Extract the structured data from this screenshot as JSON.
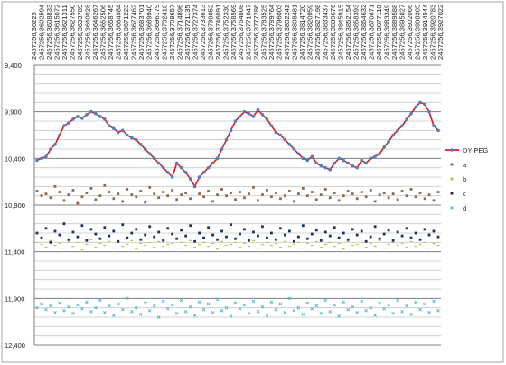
{
  "chart_data": {
    "type": "line",
    "title": "",
    "xlabel": "",
    "ylabel": "",
    "y_reversed": true,
    "ylim": [
      9.4,
      12.4
    ],
    "yticks": [
      "9,400",
      "9,900",
      "10,400",
      "10,900",
      "11,400",
      "11,900",
      "12,400"
    ],
    "grid": true,
    "legend_position": "right",
    "x_tick_labels": [
      "2457256,36225",
      "2457256,3602594",
      "2457256,3608833",
      "2457256,3615072",
      "2457256,3621311",
      "2457256,3627550",
      "2457256,3633789",
      "2457256,3640028",
      "2457256,3646267",
      "2457256,3652506",
      "2457256,3658745",
      "2457256,3664984",
      "2457256,3671223",
      "2457256,3677462",
      "2457256,3683701",
      "2457256,3689940",
      "2457256,3696179",
      "2457256,3702418",
      "2457256,3708657",
      "2457256,3714896",
      "2457256,3721135",
      "2457256,3727374",
      "2457256,3733613",
      "2457256,3739852",
      "2457256,3746091",
      "2457256,3752330",
      "2457256,3758569",
      "2457256,3764808",
      "2457256,3771047",
      "2457256,3777286",
      "2457256,3783525",
      "2457256,3789764",
      "2457256,3796003",
      "2457256,3802242",
      "2457256,3808481",
      "2457256,3814720",
      "2457256,3820959",
      "2457256,3827198",
      "2457256,3833437",
      "2457256,3839676",
      "2457256,3845915",
      "2457256,3852154",
      "2457256,3858393",
      "2457256,3864632",
      "2457256,3870871",
      "2457256,3877110",
      "2457256,3883349",
      "2457256,3889588",
      "2457256,3895827",
      "2457256,3902066",
      "2457256,3908305",
      "2457256,3914544",
      "2457256,3920783",
      "2457256,3927022"
    ],
    "series": [
      {
        "name": "DY PEG",
        "kind": "line",
        "color": "#e8161b",
        "marker_color": "#4f81bd",
        "values": [
          10.42,
          10.4,
          10.38,
          10.3,
          10.25,
          10.15,
          10.05,
          10.02,
          9.98,
          9.95,
          9.97,
          9.93,
          9.9,
          9.92,
          9.95,
          9.98,
          10.05,
          10.08,
          10.12,
          10.1,
          10.15,
          10.18,
          10.2,
          10.25,
          10.3,
          10.35,
          10.4,
          10.45,
          10.5,
          10.55,
          10.6,
          10.45,
          10.5,
          10.55,
          10.62,
          10.7,
          10.6,
          10.55,
          10.5,
          10.45,
          10.4,
          10.3,
          10.2,
          10.1,
          10.0,
          9.95,
          9.9,
          9.92,
          9.95,
          9.88,
          9.93,
          9.98,
          10.05,
          10.12,
          10.15,
          10.2,
          10.25,
          10.3,
          10.35,
          10.4,
          10.42,
          10.38,
          10.45,
          10.48,
          10.5,
          10.52,
          10.45,
          10.4,
          10.42,
          10.45,
          10.48,
          10.5,
          10.42,
          10.45,
          10.4,
          10.38,
          10.35,
          10.28,
          10.22,
          10.15,
          10.1,
          10.05,
          9.98,
          9.92,
          9.85,
          9.8,
          9.82,
          9.9,
          10.05,
          10.1
        ]
      },
      {
        "name": "a",
        "kind": "markers",
        "color": "#8b6a55",
        "values": [
          10.75,
          10.8,
          10.78,
          10.82,
          10.7,
          10.76,
          10.85,
          10.79,
          10.74,
          10.88,
          10.81,
          10.77,
          10.72,
          10.84,
          10.8,
          10.69,
          10.76,
          10.83,
          10.78,
          10.86,
          10.73,
          10.79,
          10.81,
          10.75,
          10.87,
          10.71,
          10.78,
          10.82,
          10.76,
          10.8,
          10.74,
          10.84,
          10.79,
          10.77,
          10.83,
          10.7,
          10.78,
          10.81,
          10.75,
          10.86,
          10.79,
          10.73,
          10.8,
          10.77,
          10.84,
          10.76,
          10.82,
          10.78,
          10.71,
          10.85,
          10.79,
          10.74,
          10.81,
          10.77,
          10.83,
          10.8,
          10.75,
          10.86,
          10.78,
          10.72,
          10.8,
          10.76,
          10.84,
          10.79,
          10.73,
          10.82,
          10.77,
          10.85,
          10.8,
          10.75,
          10.78,
          10.83,
          10.76,
          10.81,
          10.74,
          10.86,
          10.79,
          10.77,
          10.82,
          10.78,
          10.84,
          10.75,
          10.8,
          10.73,
          10.81,
          10.77,
          10.83,
          10.79,
          10.85,
          10.76
        ]
      },
      {
        "name": "b",
        "kind": "markers",
        "color": "#b5c94a",
        "values": [
          11.3,
          11.32,
          11.35,
          11.28,
          11.33,
          11.31,
          11.36,
          11.29,
          11.34,
          11.3,
          11.38,
          11.32,
          11.27,
          11.35,
          11.31,
          11.33,
          11.29,
          11.36,
          11.3,
          11.34,
          11.32,
          11.28,
          11.37,
          11.31,
          11.33,
          11.3,
          11.35,
          11.29,
          11.34,
          11.32,
          11.31,
          11.36,
          11.3,
          11.33,
          11.28,
          11.35,
          11.32,
          11.3,
          11.34,
          11.31,
          11.37,
          11.29,
          11.33,
          11.32,
          11.3,
          11.35,
          11.31,
          11.34,
          11.28,
          11.36,
          11.32,
          11.3,
          11.33,
          11.31,
          11.35,
          11.29,
          11.34,
          11.32,
          11.3,
          11.36,
          11.31,
          11.33,
          11.29,
          11.35,
          11.32,
          11.3,
          11.34,
          11.31,
          11.37,
          11.29,
          11.33,
          11.32,
          11.3,
          11.35,
          11.31,
          11.34,
          11.28,
          11.36,
          11.32,
          11.3,
          11.33,
          11.31,
          11.35,
          11.29,
          11.34,
          11.32,
          11.3,
          11.36,
          11.31,
          11.33
        ]
      },
      {
        "name": "c",
        "kind": "markers",
        "color": "#1f2f5e",
        "values": [
          11.2,
          11.25,
          11.15,
          11.3,
          11.18,
          11.22,
          11.1,
          11.27,
          11.19,
          11.24,
          11.12,
          11.28,
          11.16,
          11.21,
          11.26,
          11.14,
          11.23,
          11.18,
          11.29,
          11.11,
          11.25,
          11.2,
          11.16,
          11.27,
          11.22,
          11.13,
          11.24,
          11.19,
          11.28,
          11.15,
          11.21,
          11.26,
          11.17,
          11.23,
          11.12,
          11.29,
          11.2,
          11.25,
          11.14,
          11.22,
          11.27,
          11.18,
          11.24,
          11.11,
          11.26,
          11.21,
          11.16,
          11.28,
          11.19,
          11.23,
          11.13,
          11.25,
          11.2,
          11.27,
          11.15,
          11.22,
          11.18,
          11.29,
          11.24,
          11.12,
          11.26,
          11.21,
          11.17,
          11.28,
          11.19,
          11.23,
          11.14,
          11.25,
          11.2,
          11.27,
          11.16,
          11.22,
          11.18,
          11.29,
          11.24,
          11.13,
          11.26,
          11.21,
          11.17,
          11.28,
          11.19,
          11.23,
          11.15,
          11.25,
          11.2,
          11.27,
          11.16,
          11.22,
          11.18,
          11.24
        ]
      },
      {
        "name": "d",
        "kind": "markers",
        "color": "#4fb3c9",
        "values": [
          12.0,
          11.96,
          12.02,
          11.98,
          12.05,
          11.95,
          12.03,
          11.99,
          12.06,
          11.97,
          12.01,
          11.94,
          12.04,
          12.0,
          11.92,
          12.05,
          11.98,
          12.08,
          11.96,
          12.02,
          11.9,
          12.04,
          12.0,
          12.07,
          11.95,
          12.03,
          11.98,
          12.1,
          11.93,
          12.01,
          11.97,
          12.06,
          11.92,
          12.04,
          11.99,
          12.08,
          11.94,
          12.02,
          11.96,
          12.05,
          11.91,
          12.03,
          12.0,
          12.09,
          11.95,
          12.01,
          11.97,
          12.06,
          11.93,
          12.04,
          11.99,
          12.08,
          11.94,
          12.02,
          11.96,
          12.05,
          11.9,
          12.03,
          12.0,
          12.07,
          11.95,
          12.01,
          11.98,
          12.06,
          11.92,
          12.04,
          11.97,
          12.09,
          11.94,
          12.02,
          11.99,
          12.05,
          11.93,
          12.03,
          12.0,
          12.08,
          11.95,
          12.01,
          11.97,
          12.06,
          11.92,
          12.04,
          11.98,
          12.07,
          11.94,
          12.02,
          11.96,
          12.05,
          11.93,
          12.03
        ]
      }
    ]
  }
}
